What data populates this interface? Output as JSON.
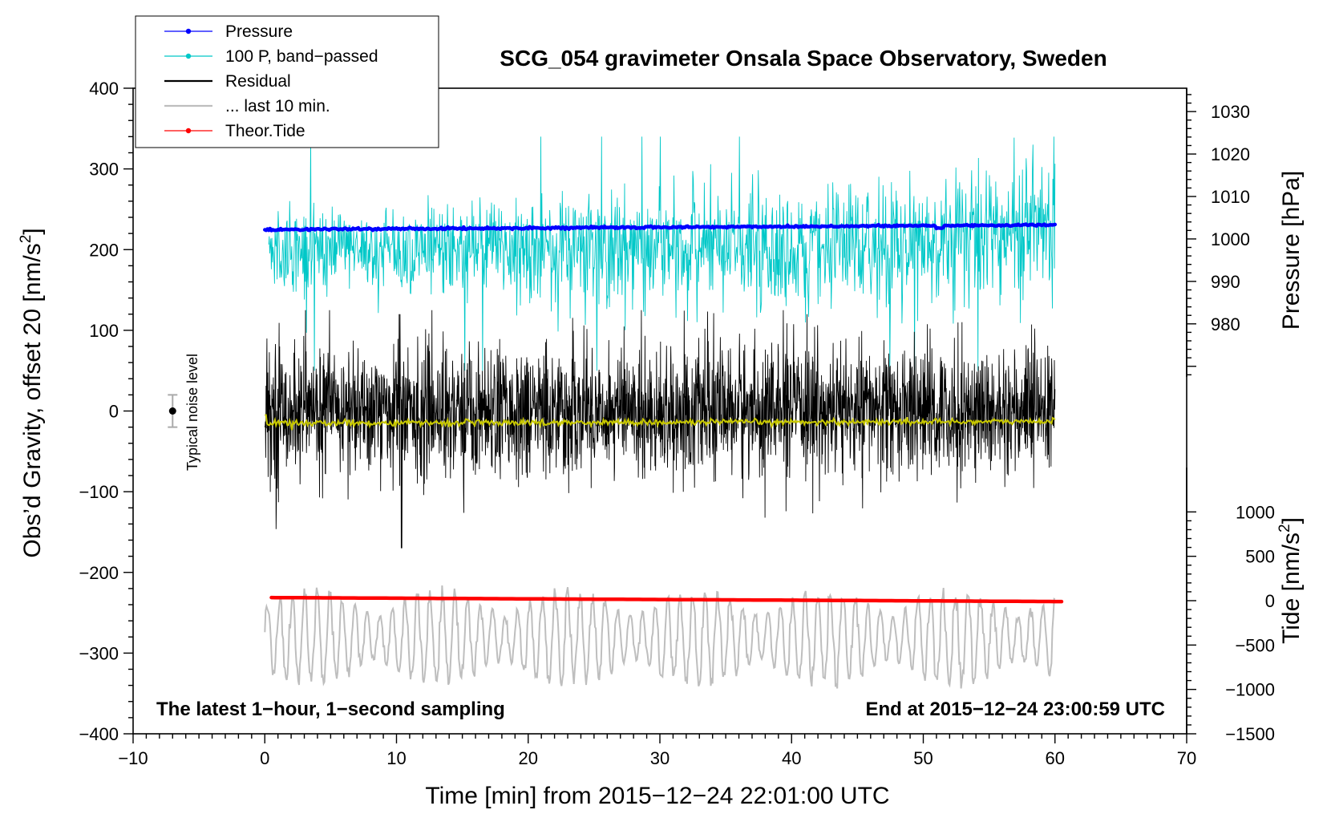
{
  "chart_data": {
    "type": "line",
    "title": "SCG_054 gravimeter Onsala Space Observatory, Sweden",
    "xlabel": "Time [min] from 2015−12−24 22:01:00 UTC",
    "ylabel_left": "Obs’d Gravity, offset 20 [nm/s",
    "ylabel_left_sup": "2",
    "ylabel_left_end": "]",
    "ylabel_right_pressure": "Pressure [hPa]",
    "ylabel_right_tide": "Tide [nm/s",
    "ylabel_right_tide_sup": "2",
    "ylabel_right_tide_end": "]",
    "xlim": [
      -10,
      70
    ],
    "ylim_left": [
      -400,
      400
    ],
    "ylim_pressure": [
      967.5,
      1035.5
    ],
    "ylim_tide": [
      -1500,
      1500
    ],
    "x_ticks": [
      -10,
      0,
      10,
      20,
      30,
      40,
      50,
      60,
      70
    ],
    "x_tick_labels": [
      "−10",
      "0",
      "10",
      "20",
      "30",
      "40",
      "50",
      "60",
      "70"
    ],
    "y_left_ticks": [
      -400,
      -300,
      -200,
      -100,
      0,
      100,
      200,
      300,
      400
    ],
    "y_left_tick_labels": [
      "−400",
      "−300",
      "−200",
      "−100",
      "0",
      "100",
      "200",
      "300",
      "400"
    ],
    "pressure_ticks": [
      980,
      990,
      1000,
      1010,
      1020,
      1030
    ],
    "pressure_tick_labels": [
      "980",
      "990",
      "1000",
      "1010",
      "1020",
      "1030"
    ],
    "tide_ticks": [
      -1500,
      -1000,
      -500,
      0,
      500,
      1000
    ],
    "tide_tick_labels": [
      "−1500",
      "−1000",
      "−500",
      "0",
      "500",
      "1000"
    ],
    "legend": [
      {
        "label": "Pressure",
        "color": "#0000ff",
        "marker": true
      },
      {
        "label": "100 P, band−passed",
        "color": "#00c8c8",
        "marker": true
      },
      {
        "label": "Residual",
        "color": "#000000",
        "marker": false
      },
      {
        "label": "... last 10 min.",
        "color": "#bebebe",
        "marker": false
      },
      {
        "label": "Theor.Tide",
        "color": "#ff0000",
        "marker": true
      }
    ],
    "annotation_left": "The latest 1−hour, 1−second sampling",
    "annotation_right": "End at 2015−12−24 23:00:59 UTC",
    "noise_label": "Typical noise level",
    "noise_level": {
      "x": -7,
      "center": 0,
      "half_range": 20
    },
    "series": [
      {
        "name": "Pressure",
        "axis": "pressure",
        "color": "#0000ff",
        "x_range": [
          0,
          60
        ],
        "start": 1002.2,
        "end": 1003.3
      },
      {
        "name": "100 P, band−passed",
        "axis": "left",
        "color": "#00c8c8",
        "x_range": [
          0.3,
          60
        ],
        "base": 200,
        "amplitude_start": 35,
        "amplitude_end": 65
      },
      {
        "name": "Residual",
        "axis": "left",
        "color": "#000000",
        "x_range": [
          0,
          60
        ],
        "base": 0,
        "typical_amplitude": 50,
        "peak": 120,
        "trough": -170
      },
      {
        "name": "Residual smoothed",
        "axis": "left",
        "color": "#c8c800",
        "x_range": [
          0,
          60
        ],
        "start": -15,
        "end": -13
      },
      {
        "name": "Theor.Tide",
        "axis": "tide",
        "color": "#ff0000",
        "x_range": [
          0.5,
          60.5
        ],
        "start": 35,
        "end": -10
      },
      {
        "name": "... last 10 min.",
        "axis": "tide",
        "color": "#bebebe",
        "x_range": [
          0,
          60
        ],
        "base": -420,
        "amplitude": 520
      }
    ]
  }
}
